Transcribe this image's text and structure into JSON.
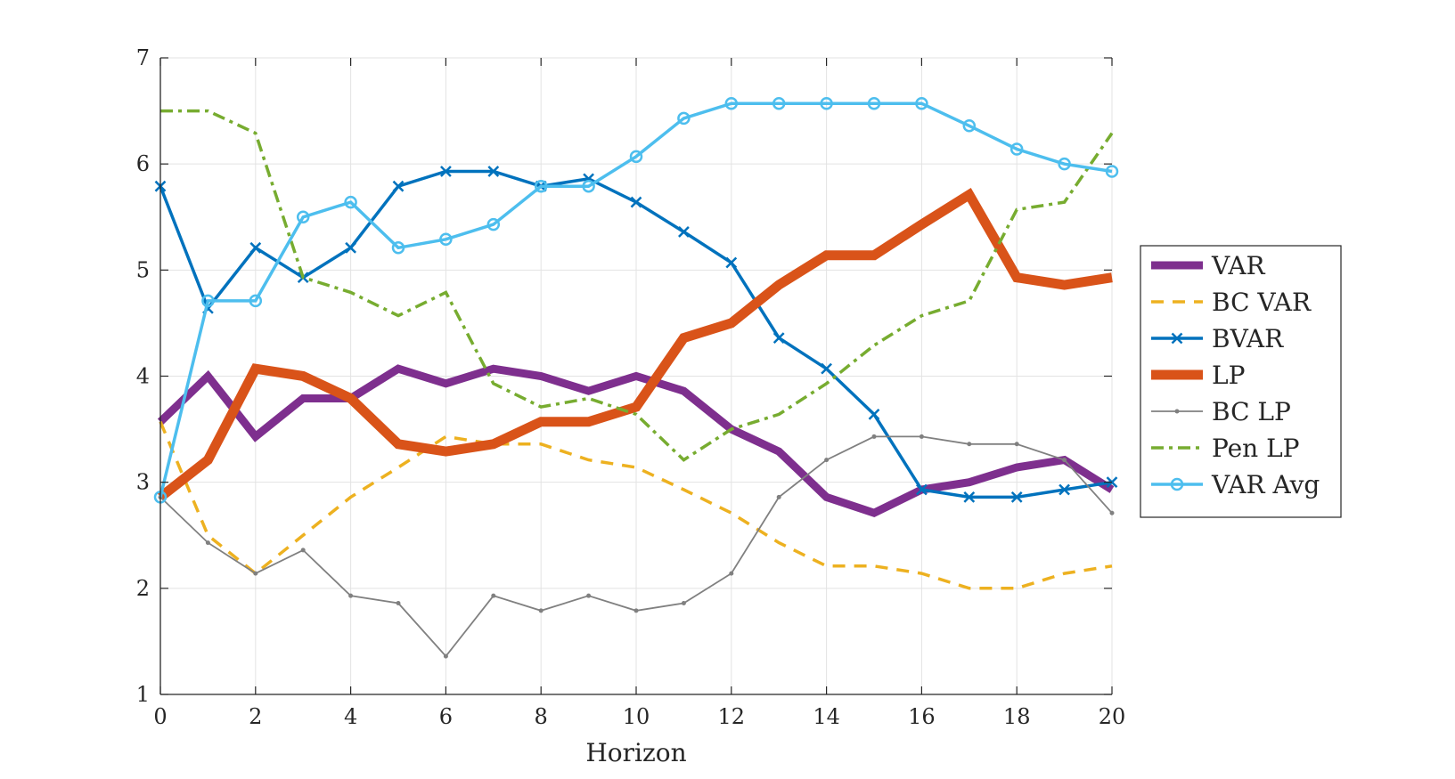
{
  "chart_data": {
    "type": "line",
    "title": "",
    "xlabel": "Horizon",
    "ylabel": "",
    "xlim": [
      0,
      20
    ],
    "ylim": [
      1,
      7
    ],
    "x_ticks": [
      "0",
      "2",
      "4",
      "6",
      "8",
      "10",
      "12",
      "14",
      "16",
      "18",
      "20"
    ],
    "y_ticks": [
      "1",
      "2",
      "3",
      "4",
      "5",
      "6",
      "7"
    ],
    "grid": true,
    "legend_position": "outside-right",
    "x": [
      0,
      1,
      2,
      3,
      4,
      5,
      6,
      7,
      8,
      9,
      10,
      11,
      12,
      13,
      14,
      15,
      16,
      17,
      18,
      19,
      20
    ],
    "series": [
      {
        "name": "VAR",
        "color": "#7e2f8e",
        "style": "solid-thick",
        "values": [
          3.57,
          4.0,
          3.43,
          3.79,
          3.79,
          4.07,
          3.93,
          4.07,
          4.0,
          3.86,
          4.0,
          3.86,
          3.5,
          3.29,
          2.86,
          2.71,
          2.93,
          3.0,
          3.14,
          3.21,
          2.93
        ]
      },
      {
        "name": "BC VAR",
        "color": "#edb120",
        "style": "dashed",
        "values": [
          3.57,
          2.5,
          2.14,
          2.5,
          2.86,
          3.14,
          3.43,
          3.36,
          3.36,
          3.21,
          3.14,
          2.93,
          2.71,
          2.43,
          2.21,
          2.21,
          2.14,
          2.0,
          2.0,
          2.14,
          2.21
        ]
      },
      {
        "name": "BVAR",
        "color": "#0072bd",
        "style": "solid-cross",
        "values": [
          5.79,
          4.64,
          5.21,
          4.93,
          5.21,
          5.79,
          5.93,
          5.93,
          5.79,
          5.86,
          5.64,
          5.36,
          5.07,
          4.36,
          4.07,
          3.64,
          2.93,
          2.86,
          2.86,
          2.93,
          3.0
        ]
      },
      {
        "name": "LP",
        "color": "#d95319",
        "style": "solid-thickest",
        "values": [
          2.86,
          3.21,
          4.07,
          4.0,
          3.79,
          3.36,
          3.29,
          3.36,
          3.57,
          3.57,
          3.71,
          4.36,
          4.5,
          4.86,
          5.14,
          5.14,
          5.43,
          5.71,
          4.93,
          4.86,
          4.93
        ]
      },
      {
        "name": "BC LP",
        "color": "#808080",
        "style": "thin-dot",
        "values": [
          2.86,
          2.43,
          2.14,
          2.36,
          1.93,
          1.86,
          1.36,
          1.93,
          1.79,
          1.93,
          1.79,
          1.86,
          2.14,
          2.86,
          3.21,
          3.43,
          3.43,
          3.36,
          3.36,
          3.21,
          2.71
        ]
      },
      {
        "name": "Pen LP",
        "color": "#77ac30",
        "style": "dashdot",
        "values": [
          6.5,
          6.5,
          6.29,
          4.93,
          4.79,
          4.57,
          4.79,
          3.93,
          3.71,
          3.79,
          3.64,
          3.21,
          3.5,
          3.64,
          3.93,
          4.29,
          4.57,
          4.71,
          5.57,
          5.64,
          6.29
        ]
      },
      {
        "name": "VAR Avg",
        "color": "#4dbeee",
        "style": "solid-circle",
        "values": [
          2.86,
          4.71,
          4.71,
          5.5,
          5.64,
          5.21,
          5.29,
          5.43,
          5.79,
          5.79,
          6.07,
          6.43,
          6.57,
          6.57,
          6.57,
          6.57,
          6.57,
          6.36,
          6.14,
          6.0,
          5.93
        ]
      }
    ]
  }
}
